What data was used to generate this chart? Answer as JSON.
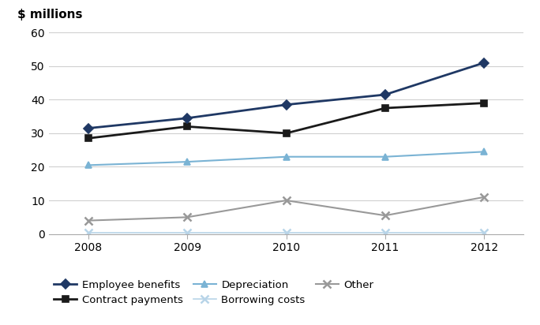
{
  "years": [
    2008,
    2009,
    2010,
    2011,
    2012
  ],
  "series": {
    "Employee benefits": {
      "values": [
        31.5,
        34.5,
        38.5,
        41.5,
        51.0
      ],
      "color": "#1f3864",
      "marker": "D",
      "markersize": 6,
      "linewidth": 2.0,
      "zorder": 5
    },
    "Contract payments": {
      "values": [
        28.5,
        32.0,
        30.0,
        37.5,
        39.0
      ],
      "color": "#1a1a1a",
      "marker": "s",
      "markersize": 6,
      "linewidth": 2.0,
      "zorder": 4
    },
    "Depreciation": {
      "values": [
        20.5,
        21.5,
        23.0,
        23.0,
        24.5
      ],
      "color": "#7ab3d4",
      "marker": "^",
      "markersize": 6,
      "linewidth": 1.5,
      "zorder": 3
    },
    "Borrowing costs": {
      "values": [
        0.5,
        0.5,
        0.5,
        0.5,
        0.5
      ],
      "color": "#b8d4e8",
      "marker": "x",
      "markersize": 7,
      "linewidth": 1.2,
      "zorder": 2
    },
    "Other": {
      "values": [
        4.0,
        5.0,
        10.0,
        5.5,
        11.0
      ],
      "color": "#999999",
      "marker": "x",
      "markersize": 7,
      "linewidth": 1.5,
      "zorder": 3
    }
  },
  "ylabel": "$ millions",
  "ylim": [
    0,
    60
  ],
  "yticks": [
    0,
    10,
    20,
    30,
    40,
    50,
    60
  ],
  "xlim_left": 2007.6,
  "xlim_right": 2012.4,
  "background_color": "#ffffff",
  "grid_color": "#d0d0d0",
  "legend_order": [
    "Employee benefits",
    "Contract payments",
    "Depreciation",
    "Borrowing costs",
    "Other"
  ]
}
